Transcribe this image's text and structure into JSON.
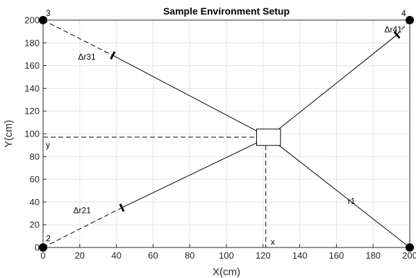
{
  "chart_data": {
    "type": "scatter",
    "title": "Sample Environment Setup",
    "xlabel": "X(cm)",
    "ylabel": "Y(cm)",
    "xlim": [
      0,
      200
    ],
    "ylim": [
      0,
      200
    ],
    "xticks": [
      0,
      20,
      40,
      60,
      80,
      100,
      120,
      140,
      160,
      180,
      200
    ],
    "yticks": [
      0,
      20,
      40,
      60,
      80,
      100,
      120,
      140,
      160,
      180,
      200
    ],
    "grid": true,
    "anchors": [
      {
        "label": "3",
        "x": 0,
        "y": 200
      },
      {
        "label": "4",
        "x": 200,
        "y": 200
      },
      {
        "label": "2",
        "x": 0,
        "y": 0
      },
      {
        "label": "",
        "x": 200,
        "y": 0
      }
    ],
    "target": {
      "x": 123,
      "y": 97,
      "width": 10,
      "height": 12
    },
    "ranges": [
      {
        "label": "Δr31",
        "from": [
          0,
          200
        ],
        "tick": [
          38,
          169
        ],
        "to": [
          123,
          97
        ]
      },
      {
        "label": "Δr41",
        "from": [
          200,
          200
        ],
        "tick": [
          193,
          187
        ],
        "to": [
          123,
          97
        ]
      },
      {
        "label": "Δr21",
        "from": [
          0,
          0
        ],
        "tick": [
          43,
          35
        ],
        "to": [
          123,
          97
        ]
      },
      {
        "label": "r1",
        "from": [
          200,
          0
        ],
        "tick": null,
        "to": [
          123,
          97
        ]
      }
    ],
    "projections": {
      "x_label": "x",
      "y_label": "y"
    }
  }
}
